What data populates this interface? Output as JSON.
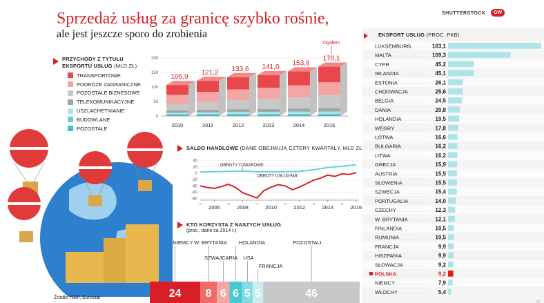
{
  "header": {
    "title": "Sprzedaż usług za granicę szybko rośnie,",
    "subtitle": "ale jest jeszcze sporo do zrobienia",
    "brand": "SHUTTERSTOCK",
    "logo_text": "GW"
  },
  "colors": {
    "accent": "#d61f26",
    "transportowe": "#e8474c",
    "podroze": "#f4a6a4",
    "pozostale_biznesowe": "#c8c8c8",
    "telekom": "#9aa8a4",
    "uszlachetnianie": "#aee4e8",
    "budowlane": "#66cfd6",
    "pozostale": "#3fc2cc",
    "line_towary": "#5ed4dc",
    "line_uslugi": "#d61f26"
  },
  "revenue": {
    "title": "Przychody z tytułu",
    "title2": "eksportu usług",
    "unit": "(mld zł)",
    "annotation": "Ogółem",
    "legend": [
      "TRANSPORTOWE",
      "PODRÓŻE ZAGRANICZNE",
      "POZOSTAŁE BIZNESOWE",
      "TELEKOMUNIKACYJNE",
      "USZLACHETNIANIE",
      "BUDOWLANE",
      "POZOSTAŁE"
    ]
  },
  "balance": {
    "title": "Saldo handlowe",
    "note": "(dane obejmują cztery kwartały, mld zł)",
    "label_towary": "OBROTY TOWAROWE",
    "label_uslugi": "OBROTY USŁUGAMI",
    "quarter_marks": [
      "III",
      "III",
      "III",
      "III",
      "III",
      "III"
    ]
  },
  "who": {
    "title": "Kto korzysta z naszych usług",
    "note": "(proc., dane za 2014 r.)"
  },
  "export": {
    "title": "Eksport usług",
    "note": "(proc. PKB)",
    "small_label": "LB"
  },
  "footer": {
    "source": "Źródło: NBP, Eurostat"
  },
  "chart_data": [
    {
      "type": "bar",
      "stacked": true,
      "categories": [
        "2010",
        "2011",
        "2012",
        "2013",
        "2014",
        "2015"
      ],
      "totals": [
        106.9,
        121.2,
        133.6,
        141.0,
        153.8,
        170.1
      ],
      "total_labels": [
        "106,9",
        "121,2",
        "133,6",
        "141,0",
        "153,8",
        "170,1"
      ],
      "series": [
        {
          "name": "TRANSPORTOWE",
          "values": [
            34,
            38,
            42,
            44,
            48,
            54
          ]
        },
        {
          "name": "PODRÓŻE ZAGRANICZNE",
          "values": [
            30,
            34,
            37,
            39,
            42,
            45
          ]
        },
        {
          "name": "POZOSTAŁE BIZNESOWE",
          "values": [
            24,
            28,
            31,
            34,
            38,
            44
          ]
        },
        {
          "name": "TELEKOMUNIKACYJNE",
          "values": [
            8,
            9,
            10,
            10,
            11,
            12
          ]
        },
        {
          "name": "USZLACHETNIANIE",
          "values": [
            4,
            5,
            6,
            6,
            7,
            7
          ]
        },
        {
          "name": "BUDOWLANE",
          "values": [
            4,
            4,
            4,
            5,
            5,
            5
          ]
        },
        {
          "name": "POZOSTAŁE",
          "values": [
            2.9,
            3.2,
            3.6,
            3.0,
            2.8,
            3.1
          ]
        }
      ],
      "y_ticks": [
        "0",
        "50",
        "100",
        "150",
        "200"
      ],
      "ylim": [
        0,
        200
      ]
    },
    {
      "type": "line",
      "x_ticks": [
        "2006",
        "2008",
        "2010",
        "2012",
        "2014",
        "2016"
      ],
      "y_ticks": [
        "40",
        "20",
        "0",
        "-20",
        "-40",
        "-60",
        "-80"
      ],
      "xlim": [
        2005,
        2016.2
      ],
      "ylim": [
        -85,
        50
      ],
      "series": [
        {
          "name": "OBROTY TOWAROWE",
          "x": [
            2005,
            2006,
            2007,
            2008,
            2009,
            2010,
            2011,
            2012,
            2013,
            2014,
            2015,
            2016
          ],
          "y": [
            4,
            5,
            6,
            7,
            5,
            5,
            5,
            6,
            11,
            18,
            22,
            27
          ]
        },
        {
          "name": "OBROTY USŁUGAMI",
          "x": [
            2005,
            2005.5,
            2006,
            2006.5,
            2007,
            2007.5,
            2008,
            2008.5,
            2009,
            2009.5,
            2010,
            2010.5,
            2011,
            2011.5,
            2012,
            2012.5,
            2013,
            2013.5,
            2014,
            2014.5,
            2015,
            2015.5,
            2016
          ],
          "y": [
            -40,
            -45,
            -48,
            -42,
            -35,
            -45,
            -62,
            -70,
            -78,
            -55,
            -44,
            -36,
            -40,
            -52,
            -44,
            -33,
            -22,
            -15,
            -6,
            -10,
            -2,
            -4,
            2
          ]
        }
      ]
    },
    {
      "type": "bar",
      "stacked_100": true,
      "categories": [
        "NIEMCY",
        "W. BRYTANIA",
        "SZWAJCARIA",
        "HOLANDIA",
        "USA",
        "FRANCJA",
        "POZOSTALI"
      ],
      "values": [
        24,
        8,
        6,
        6,
        5,
        5,
        46
      ]
    },
    {
      "type": "bar",
      "orientation": "horizontal",
      "categories": [
        "LUKSEMBURG",
        "MALTA",
        "CYPR",
        "IRLANDIA",
        "ESTONIA",
        "CHORWACJA",
        "BELGIA",
        "DANIA",
        "HOLANDIA",
        "WĘGRY",
        "ŁOTWA",
        "BUŁGARIA",
        "LITWA",
        "GRECJA",
        "AUSTRIA",
        "SŁOWENIA",
        "SZWECJA",
        "PORTUGALIA",
        "CZECHY",
        "W. BRYTANIA",
        "FINLANDIA",
        "RUMUNIA",
        "FRANCJA",
        "HISZPANIA",
        "SŁOWACJA",
        "POLSKA",
        "NIEMCY",
        "WŁOCHY"
      ],
      "values": [
        163.1,
        109.3,
        45.2,
        45.1,
        26.1,
        25.6,
        24.5,
        20.8,
        19.5,
        17.8,
        16.6,
        16.2,
        16.2,
        15.9,
        15.5,
        15.5,
        15.4,
        14.0,
        12.3,
        12.1,
        10.5,
        10.5,
        9.9,
        9.9,
        9.2,
        9.2,
        7.9,
        5.4
      ],
      "value_labels": [
        "163,1",
        "109,3",
        "45,2",
        "45,1",
        "26,1",
        "25,6",
        "24,5",
        "20,8",
        "19,5",
        "17,8",
        "16,6",
        "16,2",
        "16,2",
        "15,9",
        "15,5",
        "15,5",
        "15,4",
        "14,0",
        "12,3",
        "12,1",
        "10,5",
        "10,5",
        "9,9",
        "9,9",
        "9,2",
        "9,2",
        "7,9",
        "5,4"
      ],
      "highlight": "POLSKA"
    }
  ]
}
